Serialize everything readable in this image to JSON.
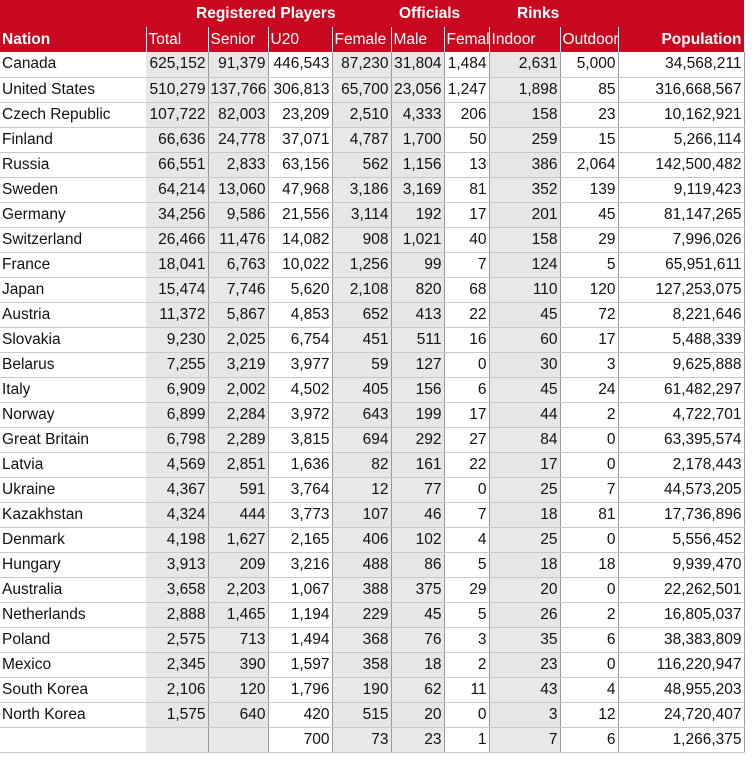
{
  "headers": {
    "groups": {
      "registered_players": "Registered Players",
      "officials": "Officials",
      "rinks": "Rinks"
    },
    "columns": {
      "nation": "Nation",
      "total": "Total",
      "senior": "Senior",
      "u20": "U20",
      "female": "Female",
      "male": "Male",
      "off_female": "Female",
      "indoor": "Indoor",
      "outdoor": "Outdoor",
      "population": "Population"
    }
  },
  "rows": [
    {
      "nation": "Canada",
      "total": "625,152",
      "senior": "91,379",
      "u20": "446,543",
      "female": "87,230",
      "male": "31,804",
      "off_female": "1,484",
      "indoor": "2,631",
      "outdoor": "5,000",
      "population": "34,568,211"
    },
    {
      "nation": "United States",
      "total": "510,279",
      "senior": "137,766",
      "u20": "306,813",
      "female": "65,700",
      "male": "23,056",
      "off_female": "1,247",
      "indoor": "1,898",
      "outdoor": "85",
      "population": "316,668,567"
    },
    {
      "nation": "Czech Republic",
      "total": "107,722",
      "senior": "82,003",
      "u20": "23,209",
      "female": "2,510",
      "male": "4,333",
      "off_female": "206",
      "indoor": "158",
      "outdoor": "23",
      "population": "10,162,921"
    },
    {
      "nation": "Finland",
      "total": "66,636",
      "senior": "24,778",
      "u20": "37,071",
      "female": "4,787",
      "male": "1,700",
      "off_female": "50",
      "indoor": "259",
      "outdoor": "15",
      "population": "5,266,114"
    },
    {
      "nation": "Russia",
      "total": "66,551",
      "senior": "2,833",
      "u20": "63,156",
      "female": "562",
      "male": "1,156",
      "off_female": "13",
      "indoor": "386",
      "outdoor": "2,064",
      "population": "142,500,482"
    },
    {
      "nation": "Sweden",
      "total": "64,214",
      "senior": "13,060",
      "u20": "47,968",
      "female": "3,186",
      "male": "3,169",
      "off_female": "81",
      "indoor": "352",
      "outdoor": "139",
      "population": "9,119,423"
    },
    {
      "nation": "Germany",
      "total": "34,256",
      "senior": "9,586",
      "u20": "21,556",
      "female": "3,114",
      "male": "192",
      "off_female": "17",
      "indoor": "201",
      "outdoor": "45",
      "population": "81,147,265"
    },
    {
      "nation": "Switzerland",
      "total": "26,466",
      "senior": "11,476",
      "u20": "14,082",
      "female": "908",
      "male": "1,021",
      "off_female": "40",
      "indoor": "158",
      "outdoor": "29",
      "population": "7,996,026"
    },
    {
      "nation": "France",
      "total": "18,041",
      "senior": "6,763",
      "u20": "10,022",
      "female": "1,256",
      "male": "99",
      "off_female": "7",
      "indoor": "124",
      "outdoor": "5",
      "population": "65,951,611"
    },
    {
      "nation": "Japan",
      "total": "15,474",
      "senior": "7,746",
      "u20": "5,620",
      "female": "2,108",
      "male": "820",
      "off_female": "68",
      "indoor": "110",
      "outdoor": "120",
      "population": "127,253,075"
    },
    {
      "nation": "Austria",
      "total": "11,372",
      "senior": "5,867",
      "u20": "4,853",
      "female": "652",
      "male": "413",
      "off_female": "22",
      "indoor": "45",
      "outdoor": "72",
      "population": "8,221,646"
    },
    {
      "nation": "Slovakia",
      "total": "9,230",
      "senior": "2,025",
      "u20": "6,754",
      "female": "451",
      "male": "511",
      "off_female": "16",
      "indoor": "60",
      "outdoor": "17",
      "population": "5,488,339"
    },
    {
      "nation": "Belarus",
      "total": "7,255",
      "senior": "3,219",
      "u20": "3,977",
      "female": "59",
      "male": "127",
      "off_female": "0",
      "indoor": "30",
      "outdoor": "3",
      "population": "9,625,888"
    },
    {
      "nation": "Italy",
      "total": "6,909",
      "senior": "2,002",
      "u20": "4,502",
      "female": "405",
      "male": "156",
      "off_female": "6",
      "indoor": "45",
      "outdoor": "24",
      "population": "61,482,297"
    },
    {
      "nation": "Norway",
      "total": "6,899",
      "senior": "2,284",
      "u20": "3,972",
      "female": "643",
      "male": "199",
      "off_female": "17",
      "indoor": "44",
      "outdoor": "2",
      "population": "4,722,701"
    },
    {
      "nation": "Great Britain",
      "total": "6,798",
      "senior": "2,289",
      "u20": "3,815",
      "female": "694",
      "male": "292",
      "off_female": "27",
      "indoor": "84",
      "outdoor": "0",
      "population": "63,395,574"
    },
    {
      "nation": "Latvia",
      "total": "4,569",
      "senior": "2,851",
      "u20": "1,636",
      "female": "82",
      "male": "161",
      "off_female": "22",
      "indoor": "17",
      "outdoor": "0",
      "population": "2,178,443"
    },
    {
      "nation": "Ukraine",
      "total": "4,367",
      "senior": "591",
      "u20": "3,764",
      "female": "12",
      "male": "77",
      "off_female": "0",
      "indoor": "25",
      "outdoor": "7",
      "population": "44,573,205"
    },
    {
      "nation": "Kazakhstan",
      "total": "4,324",
      "senior": "444",
      "u20": "3,773",
      "female": "107",
      "male": "46",
      "off_female": "7",
      "indoor": "18",
      "outdoor": "81",
      "population": "17,736,896"
    },
    {
      "nation": "Denmark",
      "total": "4,198",
      "senior": "1,627",
      "u20": "2,165",
      "female": "406",
      "male": "102",
      "off_female": "4",
      "indoor": "25",
      "outdoor": "0",
      "population": "5,556,452"
    },
    {
      "nation": "Hungary",
      "total": "3,913",
      "senior": "209",
      "u20": "3,216",
      "female": "488",
      "male": "86",
      "off_female": "5",
      "indoor": "18",
      "outdoor": "18",
      "population": "9,939,470"
    },
    {
      "nation": "Australia",
      "total": "3,658",
      "senior": "2,203",
      "u20": "1,067",
      "female": "388",
      "male": "375",
      "off_female": "29",
      "indoor": "20",
      "outdoor": "0",
      "population": "22,262,501"
    },
    {
      "nation": "Netherlands",
      "total": "2,888",
      "senior": "1,465",
      "u20": "1,194",
      "female": "229",
      "male": "45",
      "off_female": "5",
      "indoor": "26",
      "outdoor": "2",
      "population": "16,805,037"
    },
    {
      "nation": "Poland",
      "total": "2,575",
      "senior": "713",
      "u20": "1,494",
      "female": "368",
      "male": "76",
      "off_female": "3",
      "indoor": "35",
      "outdoor": "6",
      "population": "38,383,809"
    },
    {
      "nation": "Mexico",
      "total": "2,345",
      "senior": "390",
      "u20": "1,597",
      "female": "358",
      "male": "18",
      "off_female": "2",
      "indoor": "23",
      "outdoor": "0",
      "population": "116,220,947"
    },
    {
      "nation": "South Korea",
      "total": "2,106",
      "senior": "120",
      "u20": "1,796",
      "female": "190",
      "male": "62",
      "off_female": "11",
      "indoor": "43",
      "outdoor": "4",
      "population": "48,955,203"
    },
    {
      "nation": "North Korea",
      "total": "1,575",
      "senior": "640",
      "u20": "420",
      "female": "515",
      "male": "20",
      "off_female": "0",
      "indoor": "3",
      "outdoor": "12",
      "population": "24,720,407"
    },
    {
      "nation": "",
      "total": "",
      "senior": "",
      "u20": "700",
      "female": "73",
      "male": "23",
      "off_female": "1",
      "indoor": "7",
      "outdoor": "6",
      "population": "1,266,375"
    }
  ]
}
